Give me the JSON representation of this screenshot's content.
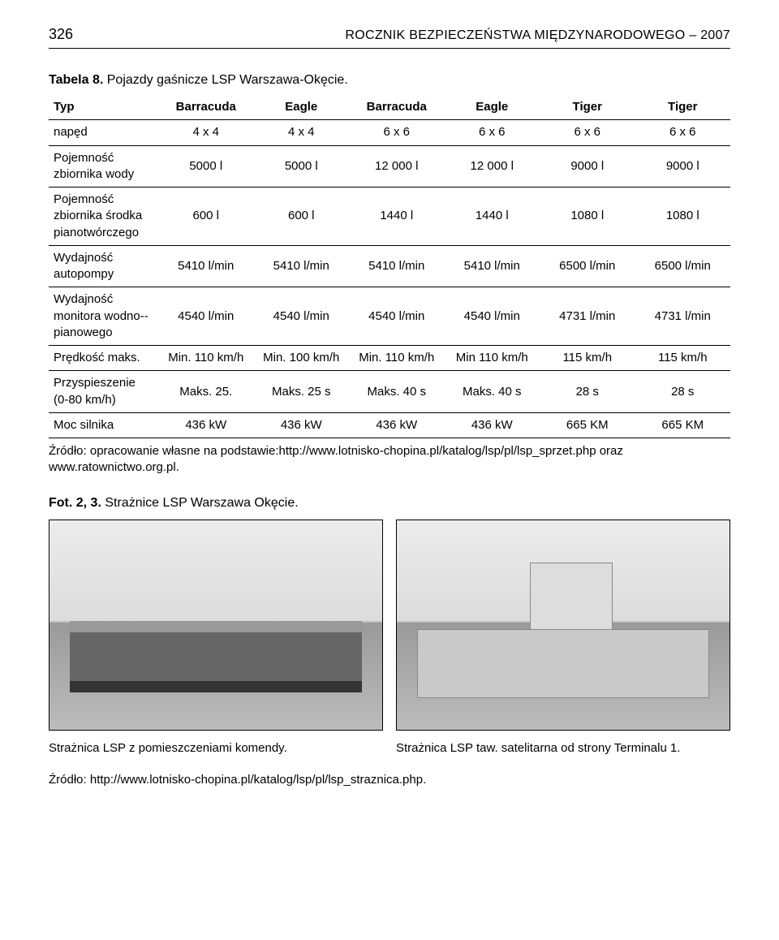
{
  "header": {
    "page_no": "326",
    "journal": "ROCZNIK BEZPIECZEŃSTWA MIĘDZYNARODOWEGO – 2007"
  },
  "table_caption": {
    "label": "Tabela 8.",
    "text": "Pojazdy gaśnicze LSP Warszawa-Okęcie."
  },
  "table": {
    "head": [
      "Typ",
      "Barracuda",
      "Eagle",
      "Barracuda",
      "Eagle",
      "Tiger",
      "Tiger"
    ],
    "rows": [
      {
        "label": "napęd",
        "c": [
          "4 x 4",
          "4 x 4",
          "6 x 6",
          "6 x 6",
          "6 x 6",
          "6 x 6"
        ]
      },
      {
        "label": "Pojemność zbiornika wody",
        "c": [
          "5000 l",
          "5000 l",
          "12 000 l",
          "12 000 l",
          "9000 l",
          "9000 l"
        ]
      },
      {
        "label": "Pojemność zbiornika środka pianotwórczego",
        "c": [
          "600 l",
          "600 l",
          "1440 l",
          "1440 l",
          "1080 l",
          "1080 l"
        ]
      },
      {
        "label": "Wydajność autopompy",
        "c": [
          "5410 l/min",
          "5410 l/min",
          "5410 l/min",
          "5410 l/min",
          "6500 l/min",
          "6500 l/min"
        ]
      },
      {
        "label": "Wydajność monitora wodno--pianowego",
        "c": [
          "4540 l/min",
          "4540 l/min",
          "4540 l/min",
          "4540 l/min",
          "4731 l/min",
          "4731 l/min"
        ]
      },
      {
        "label": "Prędkość maks.",
        "c": [
          "Min. 110 km/h",
          "Min. 100 km/h",
          "Min. 110 km/h",
          "Min 110 km/h",
          "115 km/h",
          "115 km/h"
        ]
      },
      {
        "label": "Przyspieszenie (0-80 km/h)",
        "c": [
          "Maks. 25.",
          "Maks. 25 s",
          "Maks. 40 s",
          "Maks. 40 s",
          "28 s",
          "28 s"
        ]
      },
      {
        "label": "Moc silnika",
        "c": [
          "436 kW",
          "436 kW",
          "436 kW",
          "436 kW",
          "665 KM",
          "665 KM"
        ]
      }
    ]
  },
  "table_source": "Źródło: opracowanie własne na podstawie:http://www.lotnisko-chopina.pl/katalog/lsp/pl/lsp_sprzet.php oraz www.ratownictwo.org.pl.",
  "fot_caption": {
    "label": "Fot. 2, 3.",
    "text": "Strażnice LSP Warszawa Okęcie."
  },
  "photo_captions": {
    "left": "Strażnica LSP z pomieszczeniami komendy.",
    "right": "Strażnica LSP taw. satelitarna od strony Terminalu 1."
  },
  "photo_source": "Źródło: http://www.lotnisko-chopina.pl/katalog/lsp/pl/lsp_straznica.php."
}
